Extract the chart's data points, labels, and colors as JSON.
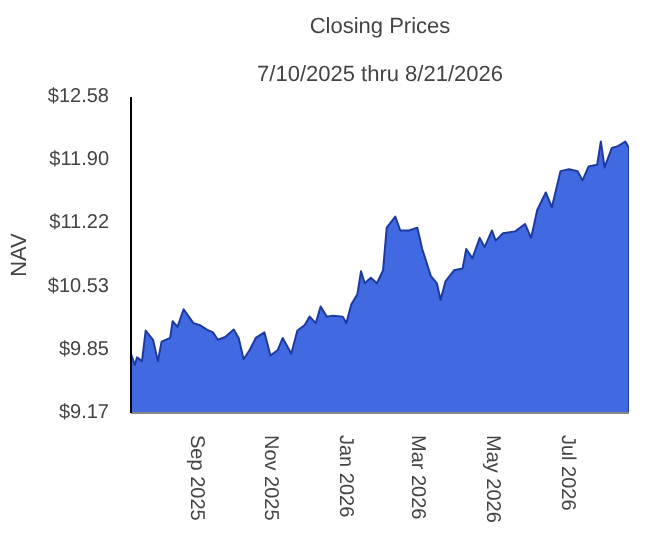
{
  "chart_data": {
    "type": "area",
    "title": "Closing Prices",
    "subtitle": "7/10/2025 thru 8/21/2026",
    "ylabel": "NAV",
    "x": [
      "2025-07-10",
      "2025-07-13",
      "2025-07-15",
      "2025-07-19",
      "2025-07-22",
      "2025-07-28",
      "2025-08-01",
      "2025-08-04",
      "2025-08-11",
      "2025-08-13",
      "2025-08-17",
      "2025-08-22",
      "2025-08-30",
      "2025-09-04",
      "2025-09-10",
      "2025-09-15",
      "2025-09-19",
      "2025-09-25",
      "2025-10-02",
      "2025-10-06",
      "2025-10-10",
      "2025-10-15",
      "2025-10-20",
      "2025-10-27",
      "2025-11-01",
      "2025-11-07",
      "2025-11-11",
      "2025-11-18",
      "2025-11-23",
      "2025-11-29",
      "2025-12-03",
      "2025-12-08",
      "2025-12-12",
      "2025-12-17",
      "2025-12-22",
      "2025-12-30",
      "2026-01-02",
      "2026-01-06",
      "2026-01-11",
      "2026-01-14",
      "2026-01-17",
      "2026-01-22",
      "2026-01-27",
      "2026-02-01",
      "2026-02-04",
      "2026-02-11",
      "2026-02-15",
      "2026-02-22",
      "2026-03-01",
      "2026-03-05",
      "2026-03-12",
      "2026-03-17",
      "2026-03-20",
      "2026-03-24",
      "2026-03-31",
      "2026-04-07",
      "2026-04-10",
      "2026-04-15",
      "2026-04-21",
      "2026-04-25",
      "2026-05-01",
      "2026-05-04",
      "2026-05-10",
      "2026-05-20",
      "2026-05-28",
      "2026-06-02",
      "2026-06-07",
      "2026-06-14",
      "2026-06-19",
      "2026-06-26",
      "2026-07-03",
      "2026-07-10",
      "2026-07-14",
      "2026-07-19",
      "2026-07-26",
      "2026-07-29",
      "2026-08-01",
      "2026-08-07",
      "2026-08-12",
      "2026-08-18",
      "2026-08-21"
    ],
    "series": [
      {
        "color": "#4169e1",
        "values": [
          9.81,
          9.69,
          9.77,
          9.73,
          10.06,
          9.96,
          9.73,
          9.94,
          9.98,
          10.16,
          10.1,
          10.29,
          10.14,
          10.12,
          10.07,
          10.04,
          9.96,
          9.99,
          10.07,
          9.98,
          9.75,
          9.85,
          9.98,
          10.04,
          9.79,
          9.85,
          9.98,
          9.81,
          10.06,
          10.12,
          10.21,
          10.14,
          10.32,
          10.21,
          10.22,
          10.21,
          10.14,
          10.34,
          10.45,
          10.7,
          10.57,
          10.63,
          10.57,
          10.71,
          11.17,
          11.29,
          11.14,
          11.14,
          11.17,
          10.94,
          10.65,
          10.57,
          10.39,
          10.59,
          10.71,
          10.73,
          10.94,
          10.84,
          11.06,
          10.96,
          11.14,
          11.03,
          11.11,
          11.13,
          11.21,
          11.06,
          11.36,
          11.55,
          11.39,
          11.78,
          11.8,
          11.78,
          11.68,
          11.83,
          11.85,
          12.1,
          11.82,
          12.03,
          12.05,
          12.1,
          12.03
        ]
      }
    ],
    "xlim": [
      "2025-07-10",
      "2026-08-21"
    ],
    "xticks": [
      {
        "value": "2025-09-01",
        "label": "Sep  2025"
      },
      {
        "value": "2025-11-01",
        "label": "Nov  2025"
      },
      {
        "value": "2026-01-01",
        "label": "Jan  2026"
      },
      {
        "value": "2026-03-01",
        "label": "Mar  2026"
      },
      {
        "value": "2026-05-01",
        "label": "May  2026"
      },
      {
        "value": "2026-07-01",
        "label": "Jul  2026"
      }
    ],
    "ylim": [
      9.17,
      12.58
    ],
    "yticks": [
      {
        "value": 9.17,
        "label": "$9.17"
      },
      {
        "value": 9.85,
        "label": "$9.85"
      },
      {
        "value": 10.53,
        "label": "$10.53"
      },
      {
        "value": 11.22,
        "label": "$11.22"
      },
      {
        "value": 11.9,
        "label": "$11.90"
      },
      {
        "value": 12.58,
        "label": "$12.58"
      }
    ],
    "grid": false
  }
}
